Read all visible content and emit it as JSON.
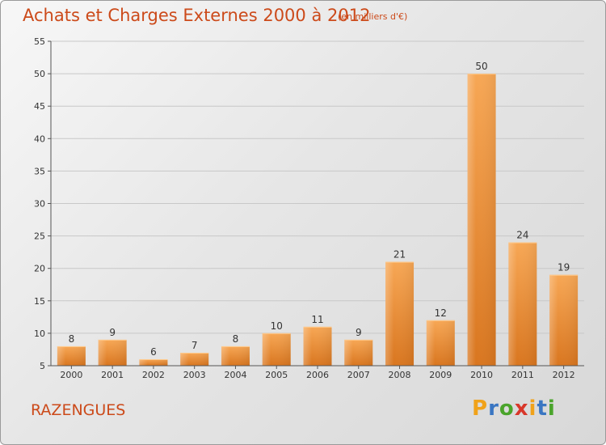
{
  "title": "Achats et Charges Externes 2000 à 2012",
  "subtitle": "(en milliers d'€)",
  "commune": "RAZENGUES",
  "logo": {
    "letters": [
      "P",
      "r",
      "o",
      "x",
      "i",
      "t",
      "i"
    ],
    "colors": [
      "#f0a21a",
      "#3a76c2",
      "#4aa42b",
      "#d8372a",
      "#f0a21a",
      "#3a76c2",
      "#4aa42b"
    ]
  },
  "colors": {
    "title": "#cc4a1a",
    "bar_light": "#f7a755",
    "bar_dark": "#d9761f"
  },
  "chart_data": {
    "type": "bar",
    "categories": [
      "2000",
      "2001",
      "2002",
      "2003",
      "2004",
      "2005",
      "2006",
      "2007",
      "2008",
      "2009",
      "2010",
      "2011",
      "2012"
    ],
    "values": [
      8,
      9,
      6,
      7,
      8,
      10,
      11,
      9,
      21,
      12,
      50,
      24,
      19
    ],
    "ylim": [
      5,
      55
    ],
    "yticks": [
      5,
      10,
      15,
      20,
      25,
      30,
      35,
      40,
      45,
      50,
      55
    ],
    "grid": true
  }
}
